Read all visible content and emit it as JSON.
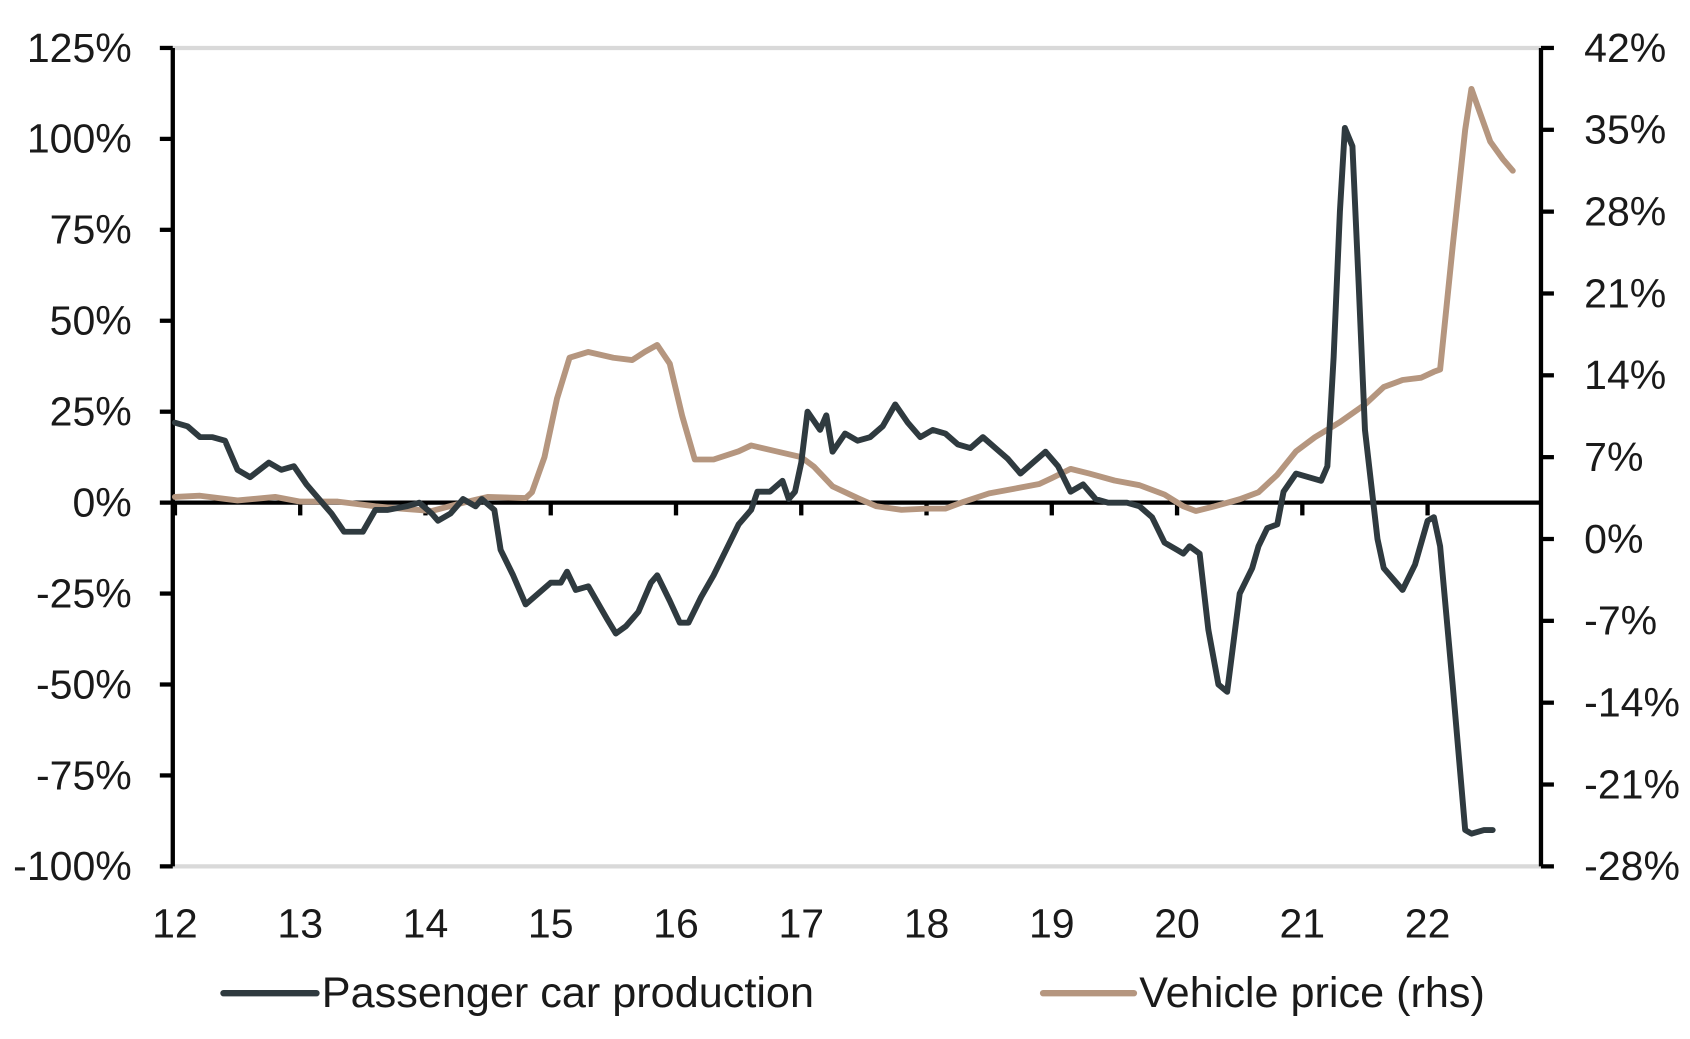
{
  "chart_data": {
    "type": "line",
    "title": "",
    "xlabel": "",
    "ylabel": "",
    "x_tick_labels": [
      "12",
      "13",
      "14",
      "15",
      "16",
      "17",
      "18",
      "19",
      "20",
      "21",
      "22"
    ],
    "x_range": [
      2012,
      2022.9
    ],
    "y_left": {
      "range": [
        -100,
        125
      ],
      "ticks": [
        125,
        100,
        75,
        50,
        25,
        0,
        -25,
        -50,
        -75,
        -100
      ],
      "tick_labels": [
        "125%",
        "100%",
        "75%",
        "50%",
        "25%",
        "0%",
        "-25%",
        "-50%",
        "-75%",
        "-100%"
      ]
    },
    "y_right": {
      "range": [
        -28,
        42
      ],
      "ticks": [
        42,
        35,
        28,
        21,
        14,
        7,
        0,
        -7,
        -14,
        -21,
        -28
      ],
      "tick_labels": [
        "42%",
        "35%",
        "28%",
        "21%",
        "14%",
        "7%",
        "0%",
        "-7%",
        "-14%",
        "-21%",
        "-28%"
      ]
    },
    "grid": false,
    "legend_position": "bottom",
    "series": [
      {
        "name": "Passenger car production",
        "axis": "left",
        "color": "#2f3a3f",
        "x": [
          2012.0,
          2012.1,
          2012.2,
          2012.3,
          2012.4,
          2012.5,
          2012.6,
          2012.75,
          2012.85,
          2012.95,
          2013.05,
          2013.15,
          2013.25,
          2013.35,
          2013.5,
          2013.6,
          2013.7,
          2013.85,
          2013.95,
          2014.05,
          2014.1,
          2014.2,
          2014.3,
          2014.4,
          2014.45,
          2014.55,
          2014.6,
          2014.7,
          2014.8,
          2014.9,
          2015.0,
          2015.08,
          2015.13,
          2015.2,
          2015.3,
          2015.4,
          2015.45,
          2015.52,
          2015.6,
          2015.7,
          2015.8,
          2015.85,
          2015.95,
          2016.03,
          2016.1,
          2016.2,
          2016.3,
          2016.4,
          2016.5,
          2016.6,
          2016.65,
          2016.75,
          2016.85,
          2016.9,
          2016.95,
          2017.0,
          2017.05,
          2017.15,
          2017.2,
          2017.25,
          2017.35,
          2017.45,
          2017.55,
          2017.65,
          2017.75,
          2017.85,
          2017.95,
          2018.05,
          2018.15,
          2018.25,
          2018.35,
          2018.45,
          2018.55,
          2018.65,
          2018.75,
          2018.85,
          2018.95,
          2019.05,
          2019.15,
          2019.25,
          2019.35,
          2019.45,
          2019.6,
          2019.7,
          2019.8,
          2019.9,
          2020.0,
          2020.05,
          2020.1,
          2020.18,
          2020.25,
          2020.33,
          2020.4,
          2020.5,
          2020.6,
          2020.65,
          2020.72,
          2020.8,
          2020.85,
          2020.95,
          2021.05,
          2021.15,
          2021.2,
          2021.25,
          2021.3,
          2021.34,
          2021.4,
          2021.45,
          2021.5,
          2021.6,
          2021.65,
          2021.75,
          2021.8,
          2021.9,
          2022.0,
          2022.05,
          2022.1,
          2022.2,
          2022.3,
          2022.35,
          2022.45,
          2022.52
        ],
        "y": [
          22,
          21,
          18,
          18,
          17,
          9,
          7,
          11,
          9,
          10,
          5,
          1,
          -3,
          -8,
          -8,
          -2,
          -2,
          -1,
          0,
          -3,
          -5,
          -3,
          1,
          -1,
          1,
          -2,
          -13,
          -20,
          -28,
          -25,
          -22,
          -22,
          -19,
          -24,
          -23,
          -29,
          -32,
          -36,
          -34,
          -30,
          -22,
          -20,
          -27,
          -33,
          -33,
          -26,
          -20,
          -13,
          -6,
          -2,
          3,
          3,
          6,
          1,
          3,
          11,
          25,
          20,
          24,
          14,
          19,
          17,
          18,
          21,
          27,
          22,
          18,
          20,
          19,
          16,
          15,
          18,
          15,
          12,
          8,
          11,
          14,
          10,
          3,
          5,
          1,
          0,
          0,
          -1,
          -4,
          -11,
          -13,
          -14,
          -12,
          -14,
          -35,
          -50,
          -52,
          -25,
          -18,
          -12,
          -7,
          -6,
          3,
          8,
          7,
          6,
          10,
          40,
          80,
          103,
          98,
          60,
          20,
          -10,
          -18,
          -22,
          -24,
          -17,
          -5,
          -4,
          -12,
          -50,
          -90,
          -91,
          -90,
          -90
        ]
      },
      {
        "name": "Vehicle price (rhs)",
        "axis": "right",
        "color": "#b5967f",
        "x": [
          2012.0,
          2012.2,
          2012.5,
          2012.8,
          2013.0,
          2013.3,
          2013.6,
          2013.8,
          2014.05,
          2014.3,
          2014.5,
          2014.8,
          2014.85,
          2014.95,
          2015.05,
          2015.15,
          2015.3,
          2015.5,
          2015.65,
          2015.75,
          2015.85,
          2015.95,
          2016.05,
          2016.15,
          2016.3,
          2016.5,
          2016.6,
          2016.8,
          2017.0,
          2017.1,
          2017.25,
          2017.45,
          2017.6,
          2017.8,
          2018.0,
          2018.15,
          2018.3,
          2018.5,
          2018.7,
          2018.9,
          2019.0,
          2019.15,
          2019.3,
          2019.5,
          2019.7,
          2019.9,
          2020.05,
          2020.15,
          2020.3,
          2020.5,
          2020.65,
          2020.8,
          2020.95,
          2021.1,
          2021.3,
          2021.5,
          2021.65,
          2021.8,
          2021.95,
          2022.05,
          2022.1,
          2022.2,
          2022.3,
          2022.35,
          2022.4,
          2022.5,
          2022.6,
          2022.68
        ],
        "y": [
          3.6,
          3.7,
          3.3,
          3.6,
          3.2,
          3.2,
          2.8,
          2.6,
          2.4,
          3.1,
          3.6,
          3.5,
          4.0,
          7.0,
          12.0,
          15.5,
          16.0,
          15.5,
          15.3,
          16.0,
          16.6,
          15.0,
          10.5,
          6.8,
          6.8,
          7.5,
          8.0,
          7.5,
          7.0,
          6.2,
          4.5,
          3.5,
          2.8,
          2.5,
          2.6,
          2.6,
          3.2,
          3.9,
          4.3,
          4.7,
          5.2,
          6.0,
          5.6,
          5.0,
          4.6,
          3.8,
          2.8,
          2.4,
          2.8,
          3.4,
          4.0,
          5.5,
          7.5,
          8.7,
          10.0,
          11.5,
          13.0,
          13.6,
          13.8,
          14.3,
          14.5,
          25.0,
          35.0,
          38.5,
          37.0,
          34.0,
          32.5,
          31.5
        ]
      }
    ]
  }
}
